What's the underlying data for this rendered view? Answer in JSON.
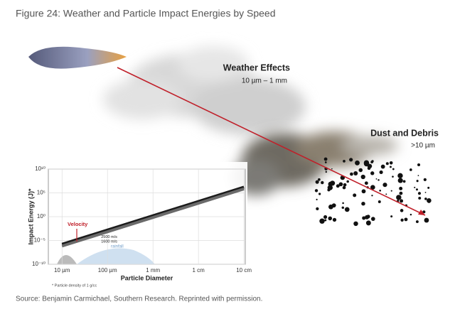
{
  "figure_title": "Figure 24: Weather and Particle Impact Energies by Speed",
  "labels": {
    "weather": "Weather Effects",
    "weather_range": "10 µm – 1 mm",
    "dust": "Dust and Debris",
    "dust_range": ">10 µm"
  },
  "chart_data": {
    "type": "line",
    "x_label": "Particle Diameter",
    "y_label": "Impact Energy (J)*",
    "x_scale": "log",
    "y_scale": "log",
    "xlim": [
      5e-06,
      0.107
    ],
    "ylim": [
      1e-10,
      10000000000.0
    ],
    "xticks": [
      {
        "value": 1e-05,
        "label": "10 µm"
      },
      {
        "value": 0.0001,
        "label": "100 µm"
      },
      {
        "value": 0.001,
        "label": "1 mm"
      },
      {
        "value": 0.01,
        "label": "1 cm"
      },
      {
        "value": 0.1,
        "label": "10 cm"
      }
    ],
    "yticks": [
      {
        "value": 1e-10,
        "label": "10⁻¹⁰"
      },
      {
        "value": 1e-05,
        "label": "10⁻⁵"
      },
      {
        "value": 1,
        "label": "10⁰"
      },
      {
        "value": 100000.0,
        "label": "10⁵"
      },
      {
        "value": 10000000000.0,
        "label": "10¹⁰"
      }
    ],
    "grid": true,
    "x": [
      1e-05,
      0.1
    ],
    "series": [
      {
        "name": "2500 m/s",
        "color": "#1a1a1a",
        "values": [
          1.6e-06,
          1600000.0
        ]
      },
      {
        "name": "1600 m/s",
        "color": "#6a6a6a",
        "values": [
          6.7e-07,
          670000.0
        ]
      }
    ],
    "annotations": [
      "Velocity",
      "rainfall"
    ],
    "footnote": "* Particle density of 1 g/cc"
  },
  "source": "Source: Benjamin Carmichael, Southern Research. Reprinted with permission."
}
